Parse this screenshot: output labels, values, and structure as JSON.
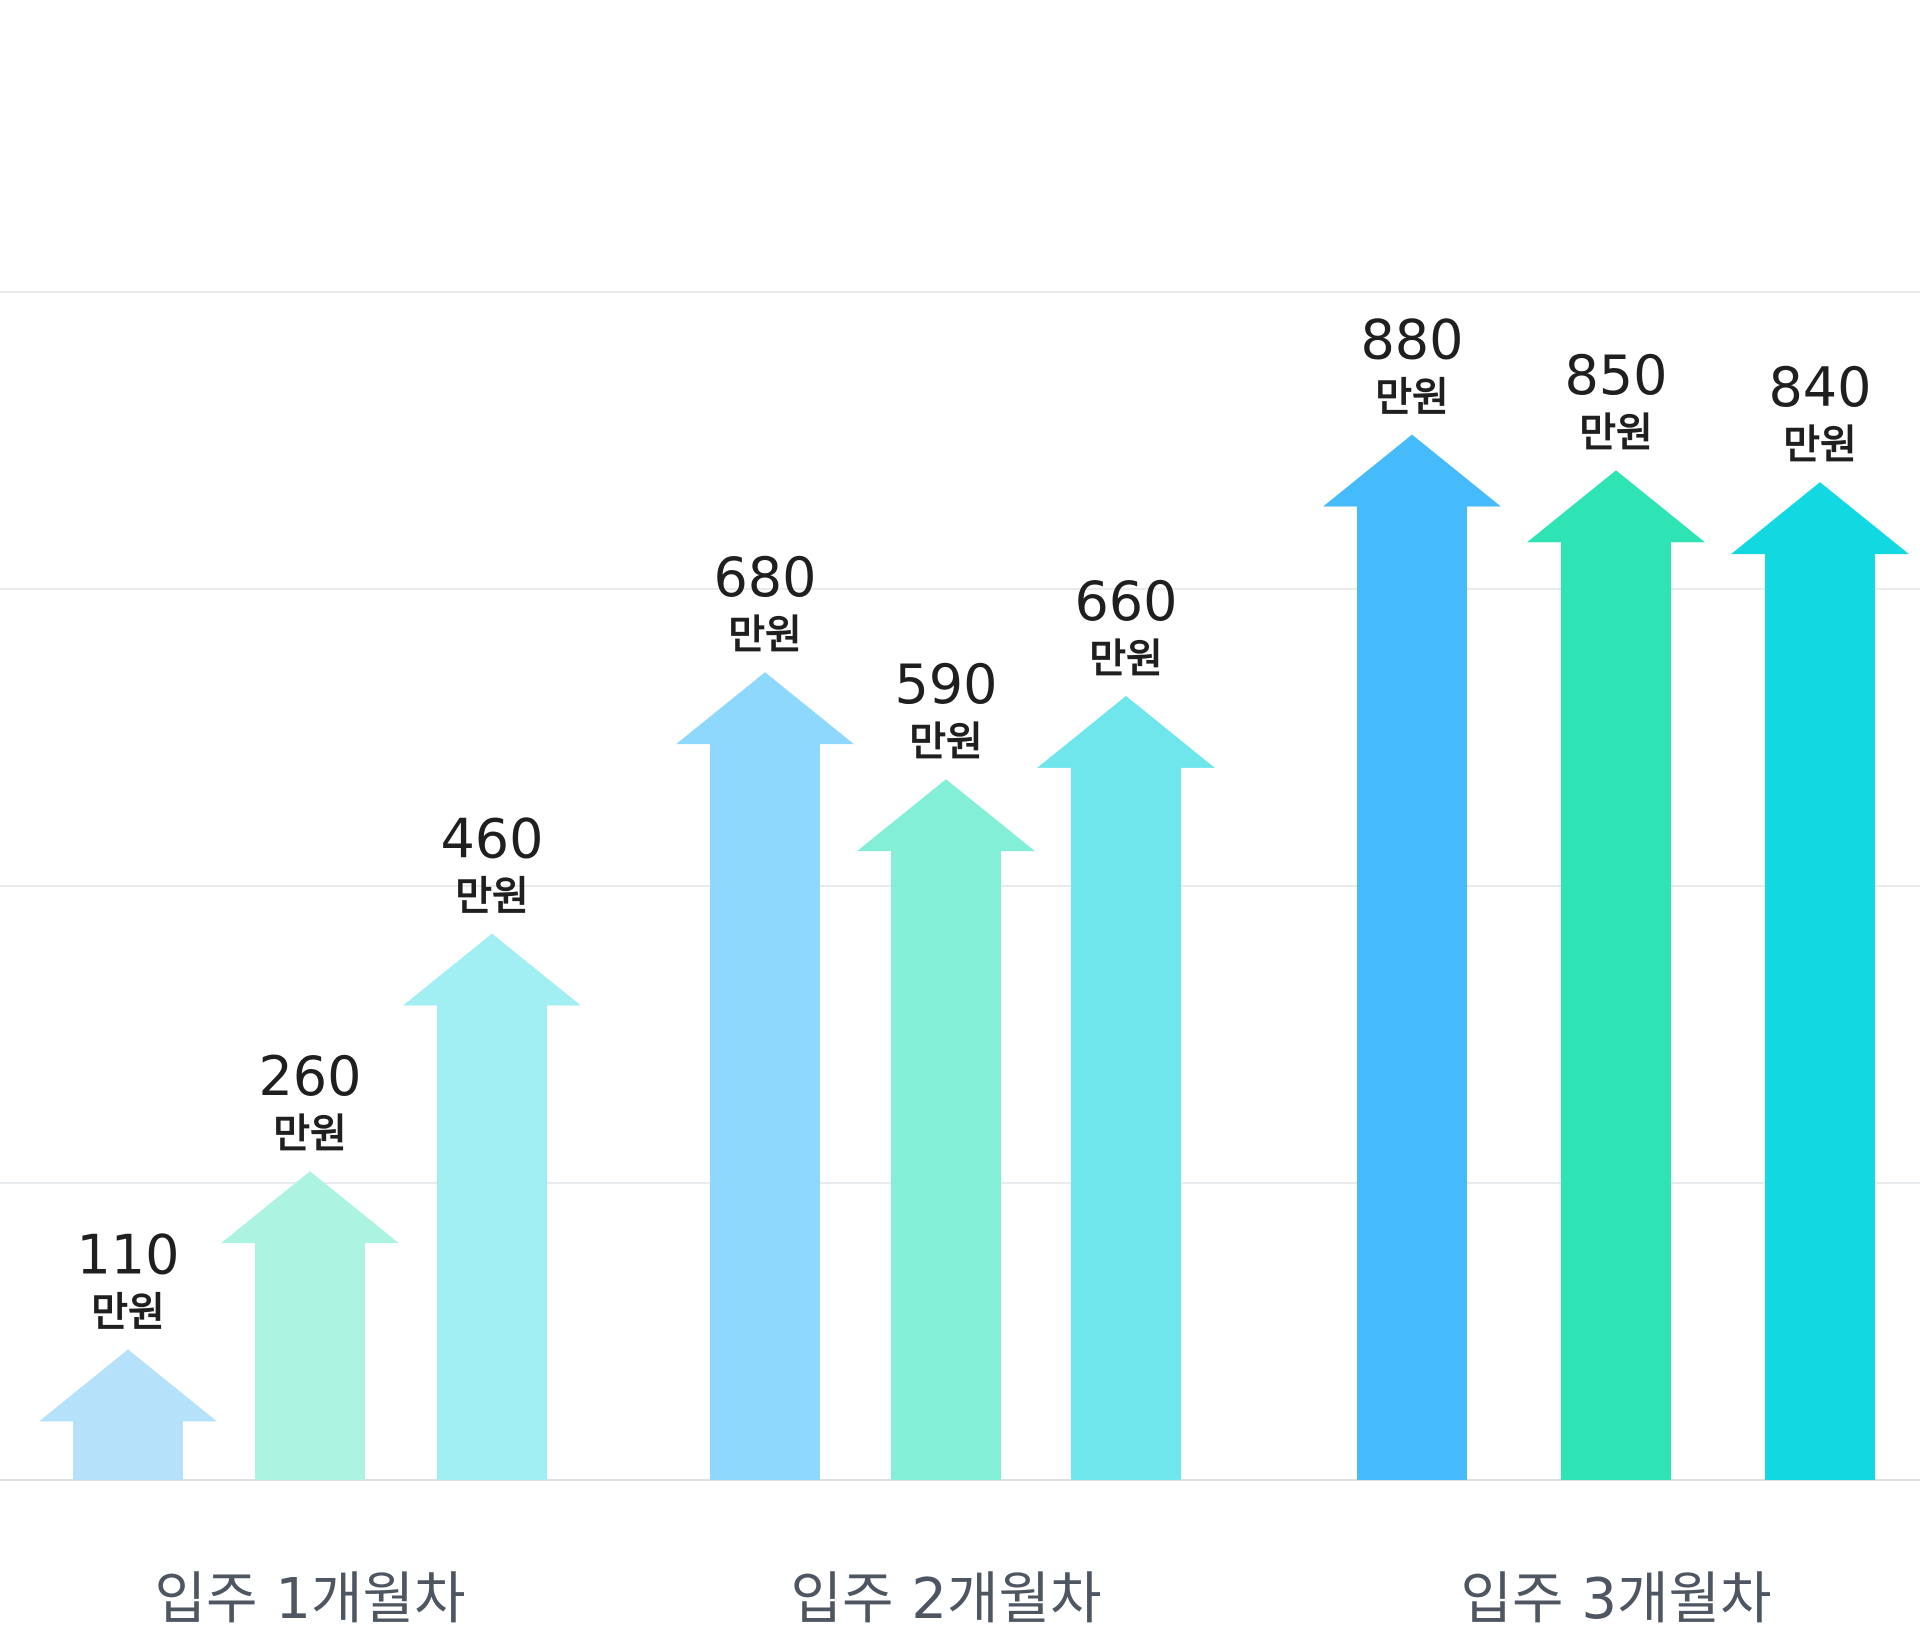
{
  "chart_data": {
    "type": "bar",
    "categories": [
      "입주 1개월차",
      "입주 2개월차",
      "입주 3개월차"
    ],
    "series": [
      {
        "values": [
          110,
          680,
          880
        ]
      },
      {
        "values": [
          260,
          590,
          850
        ]
      },
      {
        "values": [
          460,
          660,
          840
        ]
      }
    ],
    "unit_label": "만원",
    "grid": true,
    "colors": [
      [
        "#b5e1fb",
        "#adf3e1",
        "#a1eef3"
      ],
      [
        "#8fd8fd",
        "#82efd6",
        "#6ee6ec"
      ],
      [
        "#45bbfb",
        "#2ee4b4",
        "#12d8e2"
      ]
    ]
  }
}
